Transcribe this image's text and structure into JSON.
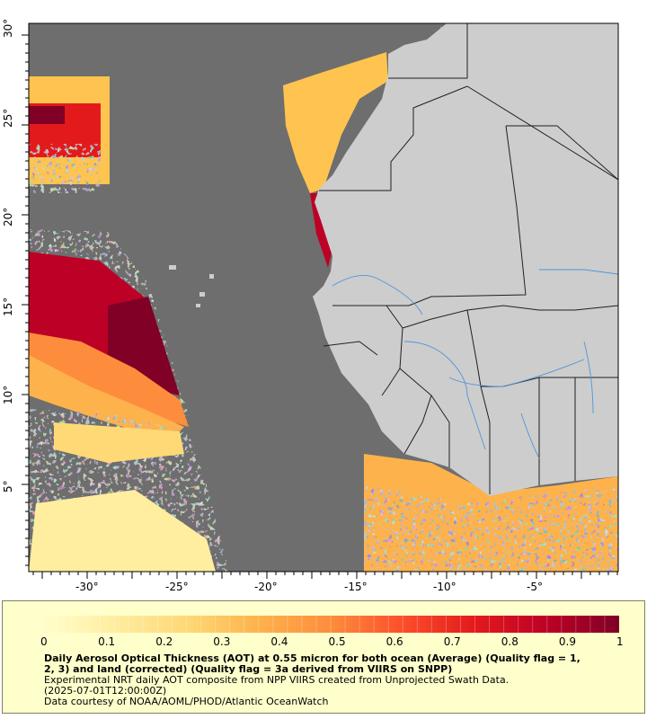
{
  "map": {
    "lon_ticks": [
      "-30°",
      "-25°",
      "-20°",
      "-15°",
      "-10°",
      "-5°"
    ],
    "lat_ticks": [
      "30°",
      "25°",
      "20°",
      "15°",
      "10°",
      "5°"
    ],
    "colors": {
      "no_data": "#6e6e6e",
      "land": "#cdcdcd",
      "border": "#202020",
      "rivers": "#4f95da"
    }
  },
  "legend": {
    "tick_labels": [
      "0",
      "0.1",
      "0.2",
      "0.3",
      "0.4",
      "0.5",
      "0.6",
      "0.7",
      "0.8",
      "0.9",
      "1"
    ],
    "ramp_colors": [
      "#ffffcc",
      "#ffeda0",
      "#fed976",
      "#feb24c",
      "#fd8d3c",
      "#fc4e2a",
      "#e31a1c",
      "#bd0026",
      "#800026"
    ],
    "title_line1": "Daily Aerosol Optical Thickness (AOT) at 0.55 micron for both ocean (Average) (Quality flag = 1,",
    "title_line2": "2, 3) and land (corrected) (Quality flag = 3a derived from VIIRS on SNPP)",
    "source_line1": "Experimental NRT daily AOT composite from NPP VIIRS created from Unprojected Swath Data.",
    "source_line2": "(2025-07-01T12:00:00Z)",
    "credit": "Data courtesy of NOAA/AOML/PHOD/Atlantic OceanWatch"
  }
}
